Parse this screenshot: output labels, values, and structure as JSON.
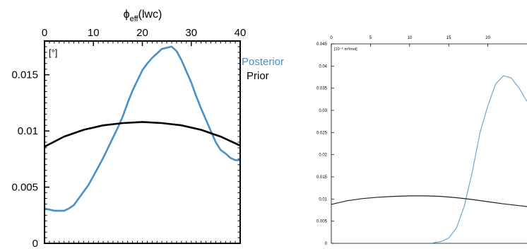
{
  "chart_data": [
    {
      "type": "line",
      "title": "ϕ",
      "title_sub": "eff",
      "title_suffix": "(lwc)",
      "unit_label": "[°]",
      "xlabel": "",
      "ylabel": "",
      "xlim": [
        0,
        40
      ],
      "ylim": [
        0,
        0.018
      ],
      "x_ticks": [
        "0",
        "10",
        "20",
        "30",
        "40"
      ],
      "y_ticks": [
        {
          "v": 0,
          "label": "0"
        },
        {
          "v": 0.005,
          "label": "0.005"
        },
        {
          "v": 0.01,
          "label": "0.01"
        },
        {
          "v": 0.015,
          "label": "0.015"
        }
      ],
      "legend_position": "outside-right",
      "series": [
        {
          "name": "Posterior",
          "color": "#4a90c8",
          "points": [
            [
              0,
              0.0031
            ],
            [
              1,
              0.003
            ],
            [
              2,
              0.0029
            ],
            [
              3,
              0.0029
            ],
            [
              4,
              0.0029
            ],
            [
              5,
              0.0031
            ],
            [
              6,
              0.0034
            ],
            [
              7,
              0.004
            ],
            [
              8,
              0.0046
            ],
            [
              9,
              0.0052
            ],
            [
              10,
              0.006
            ],
            [
              11,
              0.0068
            ],
            [
              12,
              0.0076
            ],
            [
              13,
              0.0085
            ],
            [
              14,
              0.0094
            ],
            [
              15,
              0.0103
            ],
            [
              16,
              0.0113
            ],
            [
              17,
              0.0125
            ],
            [
              18,
              0.0136
            ],
            [
              19,
              0.0145
            ],
            [
              20,
              0.0154
            ],
            [
              21,
              0.016
            ],
            [
              22,
              0.0165
            ],
            [
              23,
              0.0169
            ],
            [
              24,
              0.0173
            ],
            [
              25,
              0.0174
            ],
            [
              26,
              0.0175
            ],
            [
              27,
              0.0171
            ],
            [
              28,
              0.0163
            ],
            [
              29,
              0.0153
            ],
            [
              30,
              0.0143
            ],
            [
              31,
              0.0131
            ],
            [
              32,
              0.012
            ],
            [
              33,
              0.011
            ],
            [
              34,
              0.01
            ],
            [
              35,
              0.009
            ],
            [
              36,
              0.0083
            ],
            [
              37,
              0.008
            ],
            [
              38,
              0.0076
            ],
            [
              39,
              0.0074
            ],
            [
              40,
              0.0074
            ]
          ]
        },
        {
          "name": "Prior",
          "color": "#000000",
          "points": [
            [
              0,
              0.0086
            ],
            [
              4,
              0.0095
            ],
            [
              8,
              0.0101
            ],
            [
              12,
              0.0105
            ],
            [
              16,
              0.0107
            ],
            [
              20,
              0.0108
            ],
            [
              24,
              0.0107
            ],
            [
              28,
              0.0105
            ],
            [
              32,
              0.0101
            ],
            [
              36,
              0.0095
            ],
            [
              40,
              0.0087
            ]
          ]
        }
      ]
    },
    {
      "type": "line",
      "title": "",
      "unit_label": "[10⁻⁶ m³/mol]",
      "xlabel": "",
      "ylabel": "",
      "xlim": [
        0,
        25
      ],
      "ylim": [
        0,
        0.045
      ],
      "x_ticks": [
        "0",
        "5",
        "10",
        "15",
        "20"
      ],
      "y_ticks": [
        {
          "v": 0,
          "label": "0"
        },
        {
          "v": 0.005,
          "label": "0.005"
        },
        {
          "v": 0.01,
          "label": "0.01"
        },
        {
          "v": 0.015,
          "label": "0.015"
        },
        {
          "v": 0.02,
          "label": "0.02"
        },
        {
          "v": 0.025,
          "label": "0.025"
        },
        {
          "v": 0.03,
          "label": "0.03"
        },
        {
          "v": 0.035,
          "label": "0.035"
        },
        {
          "v": 0.04,
          "label": "0.04"
        },
        {
          "v": 0.045,
          "label": "0.045"
        }
      ],
      "series": [
        {
          "color": "#6aa8d8",
          "points": [
            [
              13,
              0.0001
            ],
            [
              14,
              0.0004
            ],
            [
              15,
              0.0012
            ],
            [
              16,
              0.0035
            ],
            [
              17,
              0.0085
            ],
            [
              18,
              0.016
            ],
            [
              19,
              0.025
            ],
            [
              20,
              0.031
            ],
            [
              21,
              0.036
            ],
            [
              22,
              0.0378
            ],
            [
              23,
              0.0373
            ],
            [
              24,
              0.035
            ],
            [
              25,
              0.032
            ]
          ]
        },
        {
          "color": "#222222",
          "points": [
            [
              0,
              0.0088
            ],
            [
              2,
              0.0096
            ],
            [
              4,
              0.0101
            ],
            [
              6,
              0.0104
            ],
            [
              8,
              0.0106
            ],
            [
              10,
              0.0107
            ],
            [
              12,
              0.0107
            ],
            [
              14,
              0.0106
            ],
            [
              16,
              0.0103
            ],
            [
              18,
              0.0099
            ],
            [
              20,
              0.0094
            ],
            [
              22,
              0.0089
            ],
            [
              24,
              0.0085
            ],
            [
              25,
              0.0083
            ]
          ]
        }
      ]
    }
  ]
}
